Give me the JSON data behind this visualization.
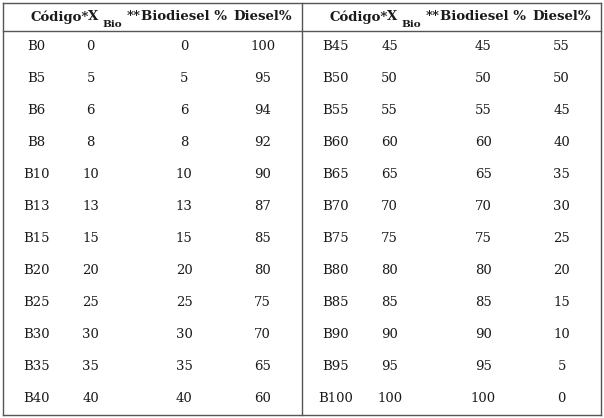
{
  "left_rows": [
    [
      "B0",
      "0",
      "0",
      "100"
    ],
    [
      "B5",
      "5",
      "5",
      "95"
    ],
    [
      "B6",
      "6",
      "6",
      "94"
    ],
    [
      "B8",
      "8",
      "8",
      "92"
    ],
    [
      "B10",
      "10",
      "10",
      "90"
    ],
    [
      "B13",
      "13",
      "13",
      "87"
    ],
    [
      "B15",
      "15",
      "15",
      "85"
    ],
    [
      "B20",
      "20",
      "20",
      "80"
    ],
    [
      "B25",
      "25",
      "25",
      "75"
    ],
    [
      "B30",
      "30",
      "30",
      "70"
    ],
    [
      "B35",
      "35",
      "35",
      "65"
    ],
    [
      "B40",
      "40",
      "40",
      "60"
    ]
  ],
  "right_rows": [
    [
      "B45",
      "45",
      "45",
      "55"
    ],
    [
      "B50",
      "50",
      "50",
      "50"
    ],
    [
      "B55",
      "55",
      "55",
      "45"
    ],
    [
      "B60",
      "60",
      "60",
      "40"
    ],
    [
      "B65",
      "65",
      "65",
      "35"
    ],
    [
      "B70",
      "70",
      "70",
      "30"
    ],
    [
      "B75",
      "75",
      "75",
      "25"
    ],
    [
      "B80",
      "80",
      "80",
      "20"
    ],
    [
      "B85",
      "85",
      "85",
      "15"
    ],
    [
      "B90",
      "90",
      "90",
      "10"
    ],
    [
      "B95",
      "95",
      "95",
      "5"
    ],
    [
      "B100",
      "100",
      "100",
      "0"
    ]
  ],
  "background_color": "#ffffff",
  "text_color": "#1a1a1a",
  "line_color": "#555555",
  "font_size": 9.5,
  "header_font_size": 9.5,
  "fig_width": 6.04,
  "fig_height": 4.18,
  "dpi": 100
}
